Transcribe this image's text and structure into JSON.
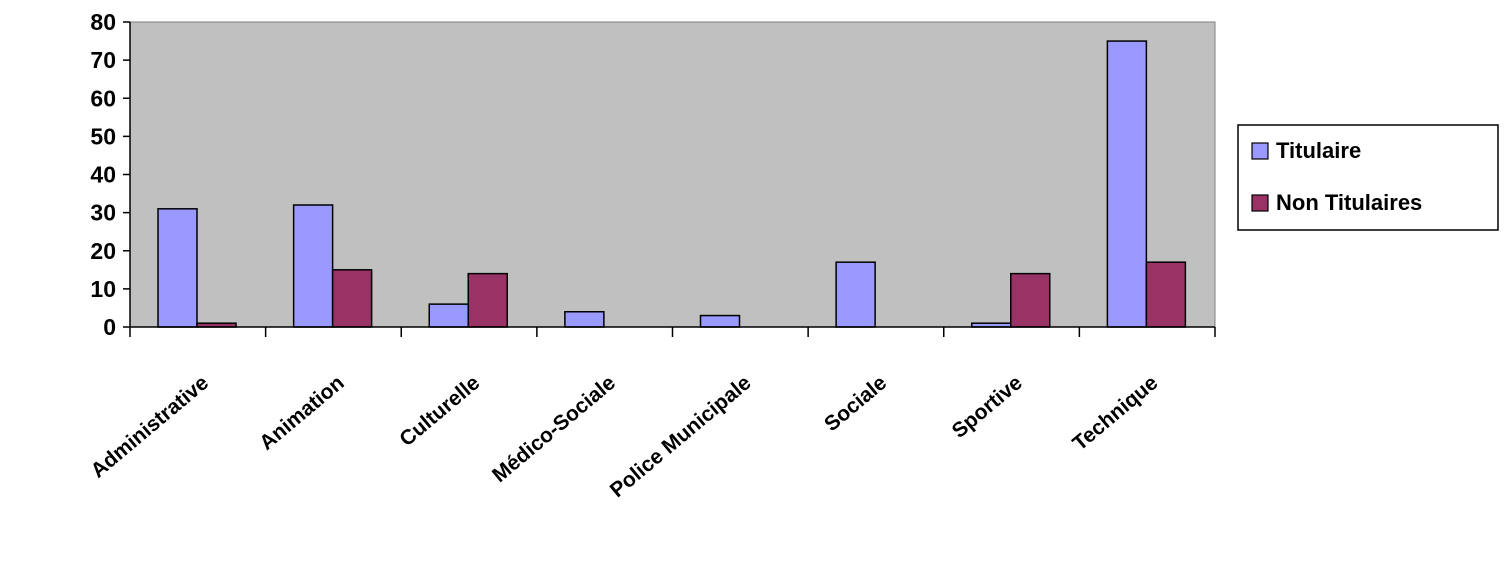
{
  "chart_data": {
    "type": "bar",
    "categories": [
      "Administrative",
      "Animation",
      "Culturelle",
      "Médico-Sociale",
      "Police Municipale",
      "Sociale",
      "Sportive",
      "Technique"
    ],
    "series": [
      {
        "name": "Titulaire",
        "values": [
          31,
          32,
          6,
          4,
          3,
          17,
          1,
          75
        ],
        "color": "#9999ff"
      },
      {
        "name": "Non Titulaires",
        "values": [
          1,
          15,
          14,
          0,
          0,
          0,
          14,
          17
        ],
        "color": "#993366"
      }
    ],
    "yticks": [
      0,
      10,
      20,
      30,
      40,
      50,
      60,
      70,
      80
    ],
    "ylim": [
      0,
      80
    ],
    "plot_background": "#c0c0c0",
    "legend_position": "right",
    "grid": false
  }
}
